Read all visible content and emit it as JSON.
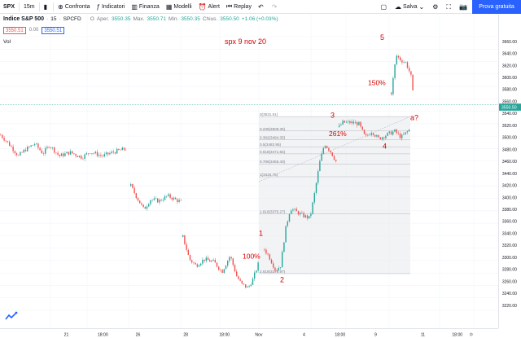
{
  "toolbar": {
    "symbol": "SPX",
    "interval": "15m",
    "compare": "Confronta",
    "indicators": "Indicatori",
    "finance": "Finanza",
    "templates": "Modelli",
    "alert": "Alert",
    "replay": "Replay",
    "save": "Salva",
    "cta": "Prova gratuita"
  },
  "legend": {
    "name": "Indice S&P 500",
    "interval": "15",
    "exchange": "SPCFD",
    "o_label": "O",
    "open_label": "Aper.",
    "open": "3550.35",
    "high_label": "Max.",
    "high": "3550.71",
    "low_label": "Min.",
    "low": "3550.35",
    "close_label": "Chius.",
    "close": "3550.50",
    "change": "+1.06 (+0.03%)",
    "bid": "3550.51",
    "spread": "0.00",
    "ask": "3550.51",
    "vol": "Vol"
  },
  "annotations": {
    "title": "spx 9 nov 20",
    "w1": "1",
    "w2": "2",
    "w3": "3",
    "w4": "4",
    "w5": "5",
    "wa": "a?",
    "p100": "100%",
    "p261": "261%",
    "p150": "150%"
  },
  "fib": [
    {
      "label": "0(3531.51)",
      "price": 3531.51
    },
    {
      "label": "0.236(3508.35)",
      "price": 3508.35
    },
    {
      "label": "0.382(3494.35)",
      "price": 3494.35
    },
    {
      "label": "0.5(3482.95)",
      "price": 3482.95
    },
    {
      "label": "0.618(3471.55)",
      "price": 3471.55
    },
    {
      "label": "0.786(3455.40)",
      "price": 3455.4
    },
    {
      "label": "1(3434.75)",
      "price": 3434.75
    },
    {
      "label": "1.618(3375.27)",
      "price": 3375.27
    },
    {
      "label": "2.618(3278.97)",
      "price": 3278.97
    }
  ],
  "price_axis": {
    "ticks": [
      "3660.00",
      "3640.00",
      "3620.00",
      "3600.00",
      "3580.00",
      "3560.00",
      "3540.00",
      "3520.00",
      "3500.00",
      "3480.00",
      "3460.00",
      "3440.00",
      "3420.00",
      "3400.00",
      "3380.00",
      "3360.00",
      "3340.00",
      "3320.00",
      "3300.00",
      "3280.00",
      "3260.00",
      "3240.00",
      "3220.00"
    ],
    "current": "3550.50"
  },
  "time_axis": [
    "21",
    "18:00",
    "26",
    "28",
    "18:00",
    "Nov",
    "4",
    "18:00",
    "9",
    "11",
    "18:00"
  ],
  "colors": {
    "up": "#26a69a",
    "down": "#ef5350",
    "label": "#d50000",
    "accent": "#2962ff"
  }
}
